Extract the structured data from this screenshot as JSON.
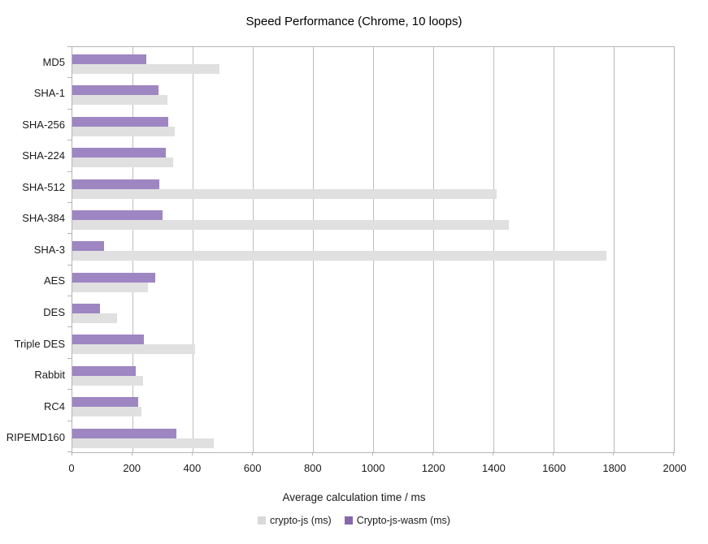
{
  "title": "Speed Performance (Chrome, 10 loops)",
  "xaxis_title": "Average calculation time / ms",
  "legend": [
    {
      "label": "crypto-js (ms)",
      "color": "#d9d9d9"
    },
    {
      "label": "Crypto-js-wasm (ms)",
      "color": "#8768ab"
    }
  ],
  "colors": {
    "crypto_js_bar": "#e0e0e0",
    "wasm_bar": "#9e86c3",
    "grid": "#bcbcbc",
    "axis": "#b4b4b4",
    "text": "#1a1a1a",
    "background": "#ffffff"
  },
  "chart_data": {
    "type": "bar",
    "orientation": "horizontal",
    "title": "Speed Performance (Chrome, 10 loops)",
    "xlabel": "Average calculation time / ms",
    "xlim": [
      0,
      2000
    ],
    "xticks": [
      0,
      200,
      400,
      600,
      800,
      1000,
      1200,
      1400,
      1600,
      1800,
      2000
    ],
    "grid": "vertical",
    "legend_position": "bottom",
    "categories": [
      "MD5",
      "SHA-1",
      "SHA-256",
      "SHA-224",
      "SHA-512",
      "SHA-384",
      "SHA-3",
      "AES",
      "DES",
      "Triple DES",
      "Rabbit",
      "RC4",
      "RIPEMD160"
    ],
    "series": [
      {
        "name": "crypto-js (ms)",
        "color": "#e0e0e0",
        "values": [
          490,
          315,
          340,
          335,
          1410,
          1450,
          1775,
          250,
          148,
          408,
          235,
          230,
          470
        ]
      },
      {
        "name": "Crypto-js-wasm (ms)",
        "color": "#9e86c3",
        "values": [
          246,
          287,
          318,
          310,
          288,
          300,
          106,
          276,
          93,
          238,
          212,
          219,
          345
        ]
      }
    ]
  }
}
